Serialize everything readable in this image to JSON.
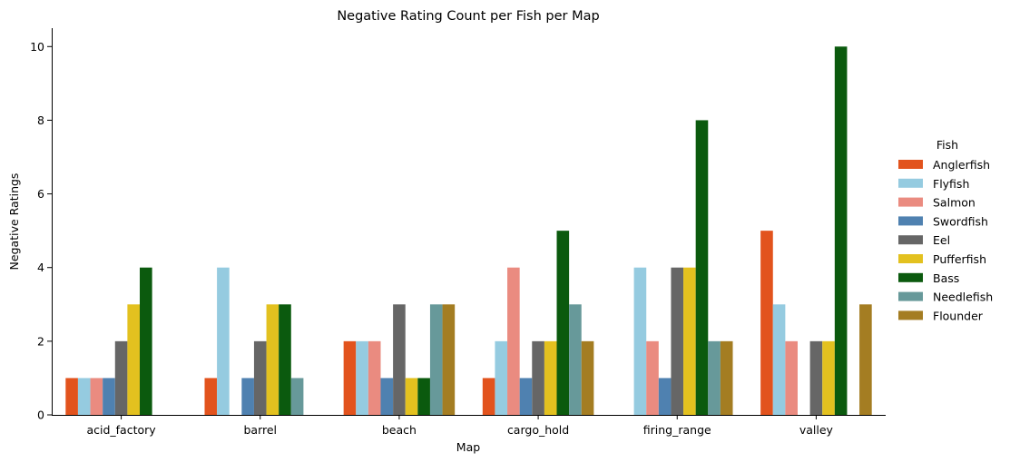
{
  "chart_data": {
    "type": "bar",
    "title": "Negative Rating Count per Fish per Map",
    "xlabel": "Map",
    "ylabel": "Negative Ratings",
    "ylim": [
      0,
      10.5
    ],
    "yticks": [
      "0",
      "2",
      "4",
      "6",
      "8",
      "10"
    ],
    "legend_title": "Fish",
    "legend_position": "right",
    "categories": [
      "acid_factory",
      "barrel",
      "beach",
      "cargo_hold",
      "firing_range",
      "valley"
    ],
    "series": [
      {
        "name": "Anglerfish",
        "color": "#e2531d",
        "values": [
          1,
          1,
          2,
          1,
          null,
          5
        ]
      },
      {
        "name": "Flyfish",
        "color": "#95cbe0",
        "values": [
          1,
          4,
          2,
          2,
          4,
          3
        ]
      },
      {
        "name": "Salmon",
        "color": "#ea8b80",
        "values": [
          1,
          null,
          2,
          4,
          2,
          2
        ]
      },
      {
        "name": "Swordfish",
        "color": "#4f81b0",
        "values": [
          1,
          1,
          1,
          1,
          1,
          null
        ]
      },
      {
        "name": "Eel",
        "color": "#666666",
        "values": [
          2,
          2,
          3,
          2,
          4,
          2
        ]
      },
      {
        "name": "Pufferfish",
        "color": "#e3c11f",
        "values": [
          3,
          3,
          1,
          2,
          4,
          2
        ]
      },
      {
        "name": "Bass",
        "color": "#0b5a0e",
        "values": [
          4,
          3,
          1,
          5,
          8,
          10
        ]
      },
      {
        "name": "Needlefish",
        "color": "#67999a",
        "values": [
          null,
          1,
          3,
          3,
          2,
          null
        ]
      },
      {
        "name": "Flounder",
        "color": "#a47d22",
        "values": [
          null,
          null,
          3,
          2,
          2,
          3
        ]
      }
    ]
  }
}
